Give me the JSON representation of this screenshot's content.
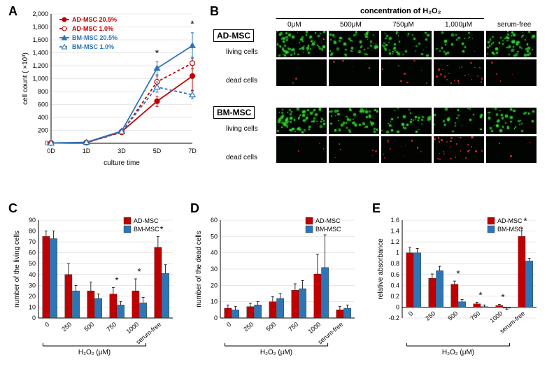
{
  "colors": {
    "ad_msc": "#c00000",
    "bm_msc": "#2e75b6",
    "axis": "#000000",
    "grid": "#d0d0d0",
    "bg": "#ffffff",
    "living_green": "#2fce2f",
    "dead_red": "#e83030",
    "black": "#050505"
  },
  "panelA": {
    "label": "A",
    "y_title": "cell count ( ×10³)",
    "x_title": "culture time",
    "y_max": 2000,
    "y_step": 200,
    "x_categories": [
      "0D",
      "1D",
      "3D",
      "5D",
      "7D"
    ],
    "series": [
      {
        "name": "AD-MSC 20.5%",
        "color": "#c00000",
        "dash": "",
        "marker": "circle",
        "values": [
          5,
          10,
          180,
          650,
          1040
        ],
        "err": [
          0,
          0,
          30,
          80,
          220
        ]
      },
      {
        "name": "AD-MSC 1.0%",
        "color": "#c00000",
        "dash": "4,3",
        "marker": "circle-open",
        "values": [
          5,
          10,
          170,
          950,
          1240
        ],
        "err": [
          0,
          0,
          30,
          90,
          90
        ]
      },
      {
        "name": "BM-MSC 20.5%",
        "color": "#2e75b6",
        "dash": "",
        "marker": "triangle",
        "values": [
          5,
          15,
          190,
          1160,
          1510
        ],
        "err": [
          0,
          0,
          30,
          100,
          200
        ]
      },
      {
        "name": "BM-MSC 1.0%",
        "color": "#2e75b6",
        "dash": "4,3",
        "marker": "triangle-open",
        "values": [
          5,
          15,
          180,
          870,
          750
        ],
        "err": [
          0,
          0,
          30,
          80,
          60
        ]
      }
    ],
    "sig_x": [
      "5D",
      "7D"
    ]
  },
  "panelB": {
    "label": "B",
    "top_header": "concentration of H₂O₂",
    "columns": [
      "0μM",
      "500μM",
      "750μM",
      "1,000μM",
      "serum-free"
    ],
    "groups": [
      {
        "name": "AD-MSC",
        "rows": [
          "living cells",
          "dead cells"
        ]
      },
      {
        "name": "BM-MSC",
        "rows": [
          "living cells",
          "dead cells"
        ]
      }
    ],
    "living_density": {
      "AD-MSC": [
        0.95,
        0.7,
        0.55,
        0.35,
        0.8
      ],
      "BM-MSC": [
        0.95,
        0.65,
        0.45,
        0.3,
        0.55
      ]
    },
    "dead_density": {
      "AD-MSC": [
        0.05,
        0.07,
        0.15,
        0.4,
        0.06
      ],
      "BM-MSC": [
        0.05,
        0.1,
        0.2,
        0.5,
        0.06
      ]
    }
  },
  "panelC": {
    "label": "C",
    "y_title": "number of the living cells",
    "y_max": 90,
    "y_min": 0,
    "y_step": 10,
    "x_categories": [
      "0",
      "250",
      "500",
      "750",
      "1000",
      "serum-free"
    ],
    "x_group_label": "H₂O₂ (μM)",
    "series": [
      {
        "name": "AD-MSC",
        "color": "#c00000",
        "values": [
          75,
          40,
          25,
          22,
          25,
          65
        ],
        "err": [
          5,
          10,
          8,
          6,
          11,
          10
        ]
      },
      {
        "name": "BM-MSC",
        "color": "#2e75b6",
        "values": [
          73,
          25,
          18,
          12,
          14,
          41
        ],
        "err": [
          7,
          5,
          4,
          3,
          5,
          8
        ]
      }
    ],
    "sig_x": [
      "750",
      "1000",
      "serum-free"
    ]
  },
  "panelD": {
    "label": "D",
    "y_title": "number of the dead cells",
    "y_max": 60,
    "y_min": 0,
    "y_step": 10,
    "x_categories": [
      "0",
      "250",
      "500",
      "750",
      "1000",
      "serum-free"
    ],
    "x_group_label": "H₂O₂ (μM)",
    "series": [
      {
        "name": "AD-MSC",
        "color": "#c00000",
        "values": [
          6,
          7,
          10,
          17,
          27,
          5
        ],
        "err": [
          2,
          2,
          3,
          4,
          12,
          2
        ]
      },
      {
        "name": "BM-MSC",
        "color": "#2e75b6",
        "values": [
          5,
          8,
          12,
          18,
          31,
          6
        ],
        "err": [
          2,
          2,
          3,
          5,
          20,
          2
        ]
      }
    ],
    "sig_x": []
  },
  "panelE": {
    "label": "E",
    "y_title": "relative absorbance",
    "y_max": 1.6,
    "y_min": -0.2,
    "y_step": 0.2,
    "x_categories": [
      "0",
      "250",
      "500",
      "750",
      "1000",
      "serum-free"
    ],
    "x_group_label": "H₂O₂ (μM)",
    "series": [
      {
        "name": "AD-MSC",
        "color": "#c00000",
        "values": [
          1.0,
          0.53,
          0.42,
          0.06,
          0.03,
          1.3
        ],
        "err": [
          0.1,
          0.08,
          0.06,
          0.03,
          0.02,
          0.15
        ]
      },
      {
        "name": "BM-MSC",
        "color": "#2e75b6",
        "values": [
          1.0,
          0.67,
          0.1,
          0.01,
          -0.02,
          0.85
        ],
        "err": [
          0.08,
          0.08,
          0.04,
          0.03,
          0.02,
          0.05
        ]
      }
    ],
    "sig_x": [
      "500",
      "750",
      "1000",
      "serum-free"
    ]
  }
}
